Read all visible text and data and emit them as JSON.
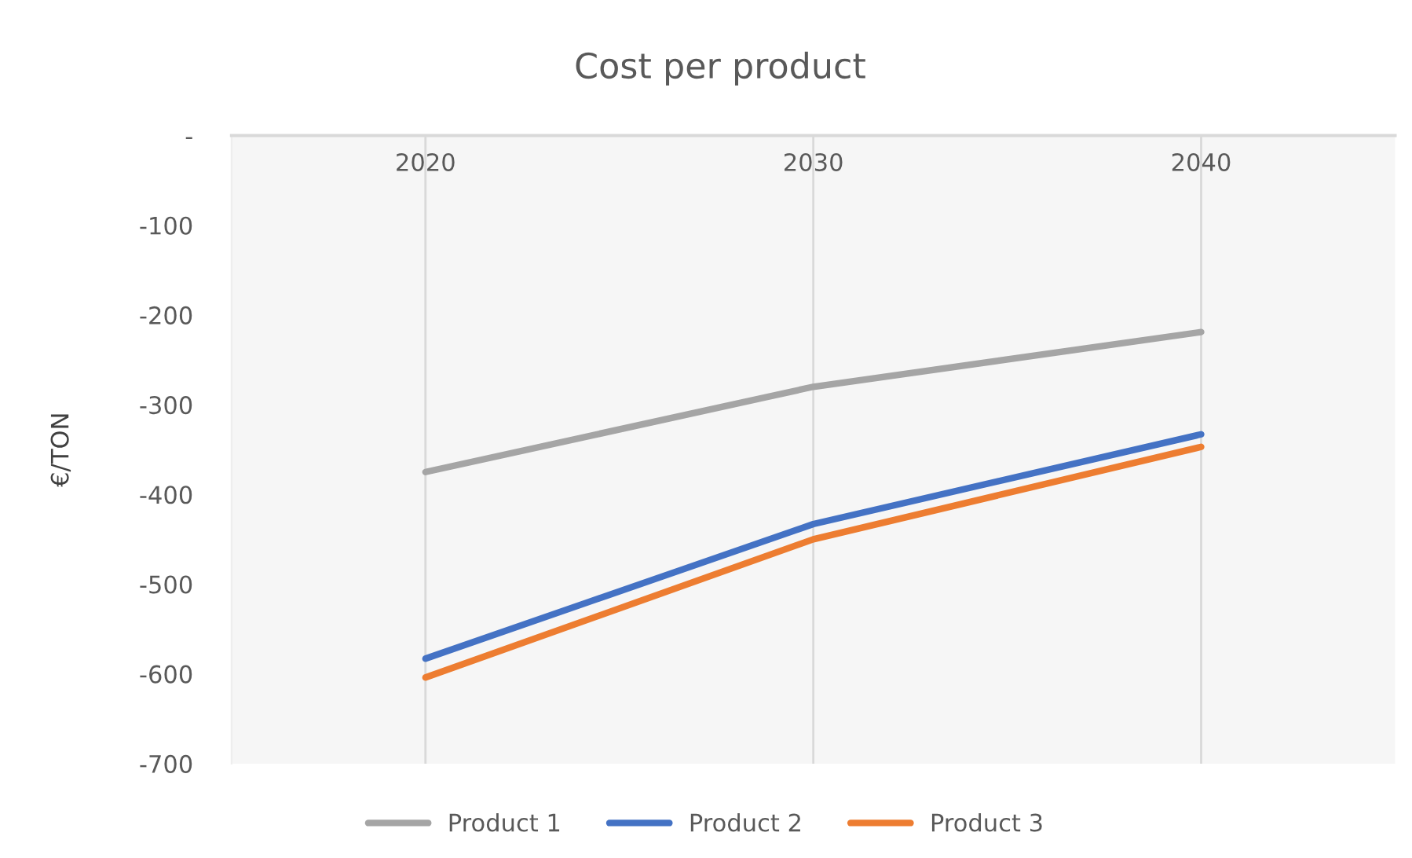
{
  "chart_data": {
    "type": "line",
    "title": "Cost per product",
    "ylabel": "€/TON",
    "categories": [
      "2020",
      "2030",
      "2040"
    ],
    "series": [
      {
        "name": "Product 1",
        "color": "#a5a5a5",
        "values": [
          -375,
          -280,
          -219
        ]
      },
      {
        "name": "Product 2",
        "color": "#4472c4",
        "values": [
          -583,
          -433,
          -333
        ]
      },
      {
        "name": "Product 3",
        "color": "#ed7d31",
        "values": [
          -604,
          -450,
          -347
        ]
      }
    ],
    "ylim": [
      -700,
      0
    ],
    "yticks": [
      {
        "value": 0,
        "label": "-"
      },
      -100,
      -200,
      -300,
      -400,
      -500,
      -600,
      -700
    ],
    "grid": "x",
    "legend": "bottom",
    "marker": "none",
    "line_style": "solid"
  }
}
